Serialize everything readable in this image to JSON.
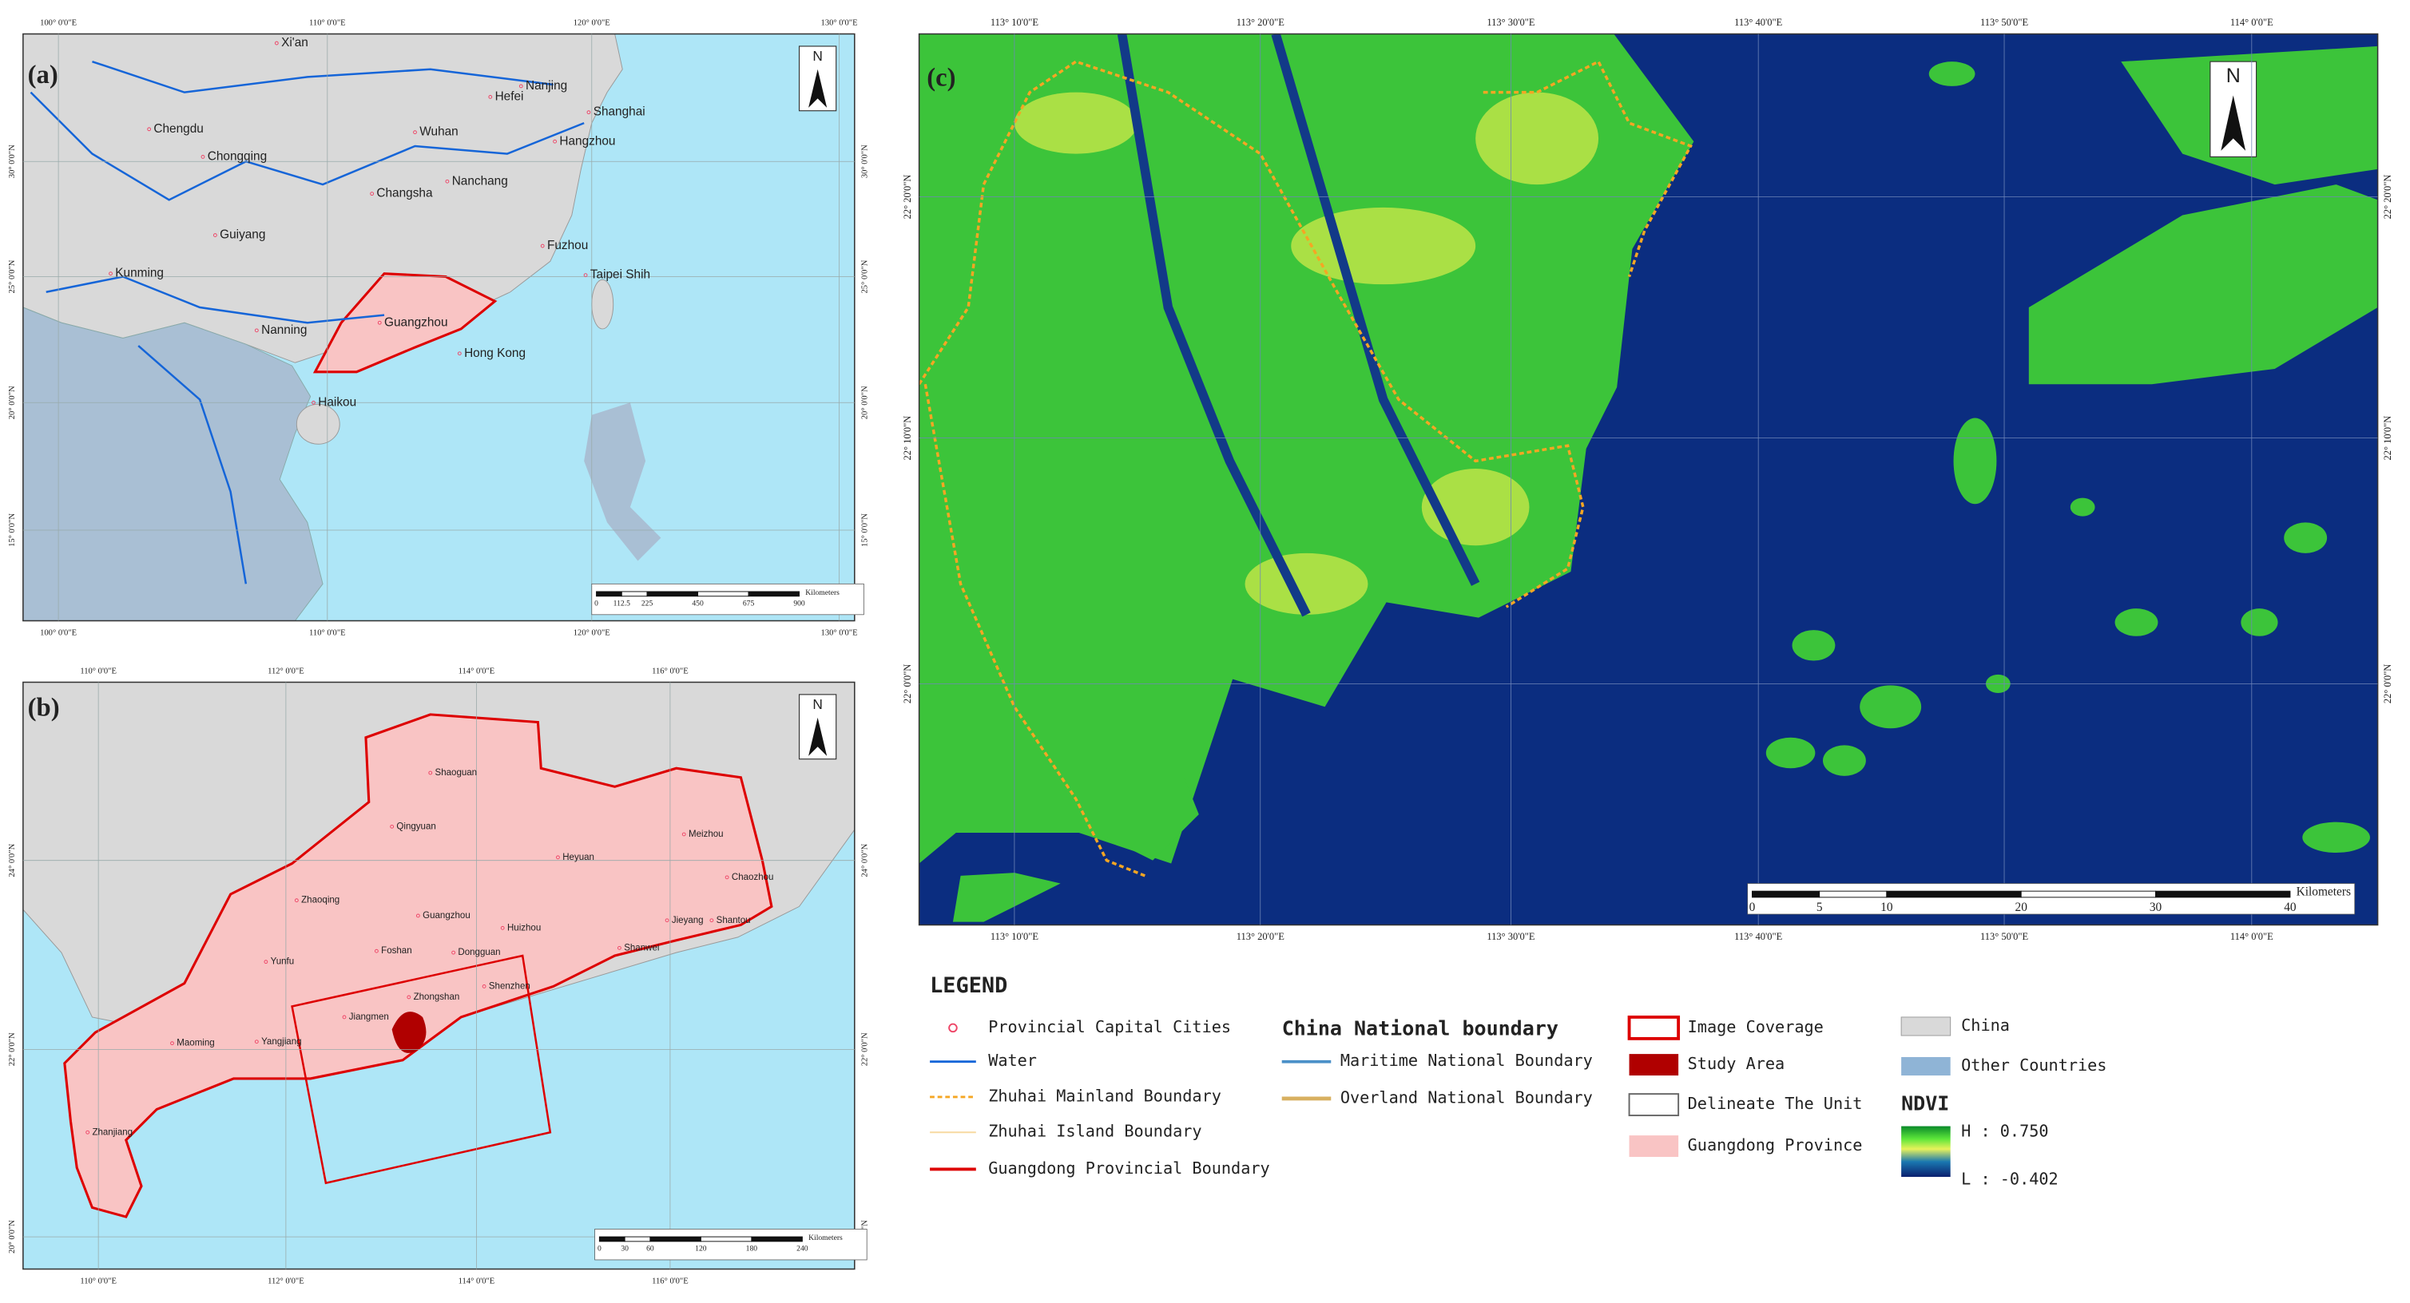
{
  "panels": [
    {
      "label": "(a)",
      "north": "N",
      "lon_labels": [
        "100° 0'0\"E",
        "110° 0'0\"E",
        "120° 0'0\"E",
        "130° 0'0\"E"
      ],
      "lat_labels": [
        "30° 0'0\"N",
        "25° 0'0\"N",
        "20° 0'0\"N",
        "15° 0'0\"N"
      ],
      "cities": [
        "Xi'an",
        "Nanjing",
        "Hefei",
        "Shanghai",
        "Chengdu",
        "Wuhan",
        "Hangzhou",
        "Chongqing",
        "Nanchang",
        "Changsha",
        "Guiyang",
        "Fuzhou",
        "Kunming",
        "Taipei Shih",
        "Nanning",
        "Guangzhou",
        "Hong Kong",
        "Haikou"
      ],
      "scale_ticks": [
        "0",
        "112.5",
        "225",
        "450",
        "675",
        "900"
      ],
      "scale_unit": "Kilometers"
    },
    {
      "label": "(b)",
      "north": "N",
      "lon_labels": [
        "110° 0'0\"E",
        "112° 0'0\"E",
        "114° 0'0\"E",
        "116° 0'0\"E"
      ],
      "lat_labels": [
        "24° 0'0\"N",
        "22° 0'0\"N",
        "20° 0'0\"N"
      ],
      "cities": [
        "Shaoguan",
        "Qingyuan",
        "Heyuan",
        "Meizhou",
        "Chaozhou",
        "Zhaoqing",
        "Guangzhou",
        "Huizhou",
        "Jieyang",
        "Shantou",
        "Yunfu",
        "Foshan",
        "Dongguan",
        "Shanwei",
        "Shenzhen",
        "Jiangmen",
        "Zhongshan",
        "Maoming",
        "Yangjiang",
        "Zhanjiang"
      ],
      "scale_ticks": [
        "0",
        "30",
        "60",
        "120",
        "180",
        "240"
      ],
      "scale_unit": "Kilometers"
    },
    {
      "label": "(c)",
      "north": "N",
      "lon_labels": [
        "113° 10'0\"E",
        "113° 20'0\"E",
        "113° 30'0\"E",
        "113° 40'0\"E",
        "113° 50'0\"E",
        "114° 0'0\"E"
      ],
      "lat_labels": [
        "22° 20'0\"N",
        "22° 10'0\"N",
        "22° 0'0\"N"
      ],
      "cities": [],
      "scale_ticks": [
        "0",
        "5",
        "10",
        "20",
        "30",
        "40"
      ],
      "scale_unit": "Kilometers"
    }
  ],
  "legend": {
    "title": "LEGEND",
    "col1": [
      "Provincial Capital Cities",
      "Water",
      "Zhuhai Mainland Boundary",
      "Zhuhai Island Boundary",
      "Guangdong Provincial Boundary"
    ],
    "col2_title": "China National boundary",
    "col2": [
      "Maritime National Boundary",
      "Overland National Boundary"
    ],
    "col3": [
      "Image Coverage",
      "Study Area",
      "Delineate The Unit",
      "Guangdong Province"
    ],
    "col4": [
      "China",
      "Other Countries"
    ],
    "ndvi_title": "NDVI",
    "ndvi_high": "H : 0.750",
    "ndvi_low": "L : -0.402"
  }
}
